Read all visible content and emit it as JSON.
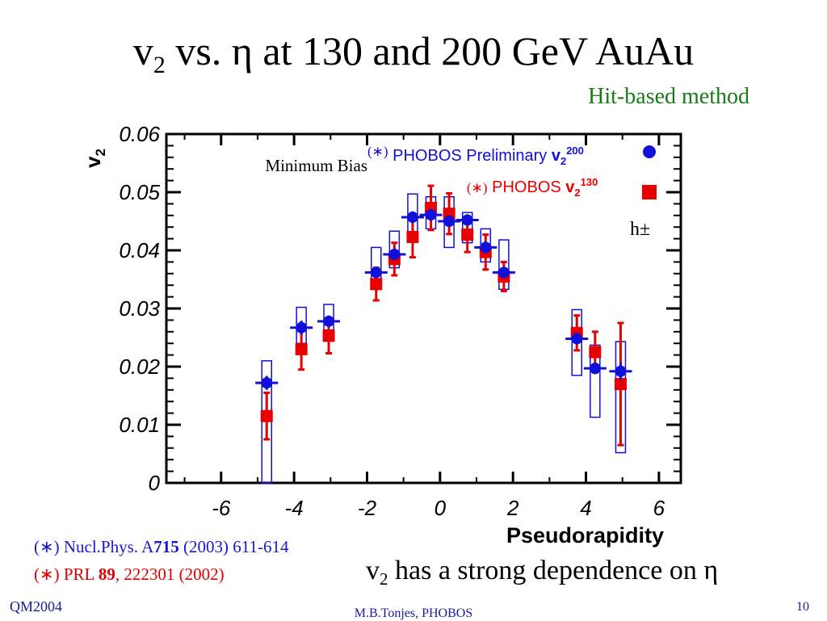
{
  "slide": {
    "title_pre": "v",
    "title_sub": "2",
    "title_post": " vs. η at 130 and 200 GeV AuAu",
    "method": "Hit-based method",
    "ref1_pre": "(∗) Nucl.Phys. A",
    "ref1_bold": "715",
    "ref1_post": " (2003) 611-614",
    "ref2_pre": "(∗) PRL ",
    "ref2_bold": "89",
    "ref2_post": ", 222301 (2002)",
    "conclusion_pre": "v",
    "conclusion_sub": "2",
    "conclusion_post": " has a strong dependence on η",
    "footer_left": "QM2004",
    "footer_center": "M.B.Tonjes, PHOBOS",
    "page_number": "10"
  },
  "chart_data": {
    "type": "scatter",
    "xlabel": "Pseudorapidity",
    "ylabel_main": "v",
    "ylabel_sub": "2",
    "xlim": [
      -7.5,
      6.6
    ],
    "ylim": [
      0,
      0.06
    ],
    "x_ticks": [
      -6,
      -4,
      -2,
      0,
      2,
      4,
      6
    ],
    "x_tick_labels": [
      "-6",
      "-4",
      "-2",
      "0",
      "2",
      "4",
      "6"
    ],
    "y_ticks": [
      0,
      0.01,
      0.02,
      0.03,
      0.04,
      0.05,
      0.06
    ],
    "y_tick_labels": [
      "0",
      "0.01",
      "0.02",
      "0.03",
      "0.04",
      "0.05",
      "0.06"
    ],
    "colors": {
      "blue": "#1010d8",
      "red": "#e80000"
    },
    "annotations": {
      "minimum_bias": "Minimum Bias",
      "particle": "h±"
    },
    "legend": [
      {
        "marker": "(∗)",
        "text": "PHOBOS Preliminary ",
        "symbol": "v",
        "sub": "2",
        "sup": "200",
        "color": "#1010d8"
      },
      {
        "marker": "(∗)",
        "text": "PHOBOS ",
        "symbol": "v",
        "sub": "2",
        "sup": "130",
        "color": "#e80000"
      }
    ],
    "series": [
      {
        "name": "PHOBOS Preliminary v2 200",
        "color": "#1010d8",
        "points": [
          {
            "x": -4.75,
            "y": 0.0172,
            "err": 0.0012,
            "sys_low": 0.0,
            "sys_high": 0.021
          },
          {
            "x": -3.8,
            "y": 0.0267,
            "err": 0.0012,
            "sys_low": 0.024,
            "sys_high": 0.0302
          },
          {
            "x": -3.05,
            "y": 0.0278,
            "err": 0.001,
            "sys_low": 0.0263,
            "sys_high": 0.0307
          },
          {
            "x": -1.75,
            "y": 0.0362,
            "err": 0.001,
            "sys_low": 0.0335,
            "sys_high": 0.0405
          },
          {
            "x": -1.25,
            "y": 0.0393,
            "err": 0.001,
            "sys_low": 0.037,
            "sys_high": 0.0433
          },
          {
            "x": -0.75,
            "y": 0.0457,
            "err": 0.001,
            "sys_low": 0.0432,
            "sys_high": 0.0497
          },
          {
            "x": -0.25,
            "y": 0.0461,
            "err": 0.001,
            "sys_low": 0.0437,
            "sys_high": 0.0492
          },
          {
            "x": 0.25,
            "y": 0.045,
            "err": 0.001,
            "sys_low": 0.0405,
            "sys_high": 0.0492
          },
          {
            "x": 0.75,
            "y": 0.0452,
            "err": 0.001,
            "sys_low": 0.0413,
            "sys_high": 0.0465
          },
          {
            "x": 1.25,
            "y": 0.0405,
            "err": 0.001,
            "sys_low": 0.038,
            "sys_high": 0.0437
          },
          {
            "x": 1.75,
            "y": 0.0362,
            "err": 0.001,
            "sys_low": 0.0333,
            "sys_high": 0.0418
          },
          {
            "x": 3.75,
            "y": 0.0248,
            "err": 0.001,
            "sys_low": 0.0185,
            "sys_high": 0.0298
          },
          {
            "x": 4.25,
            "y": 0.0197,
            "err": 0.001,
            "sys_low": 0.0113,
            "sys_high": 0.0237
          },
          {
            "x": 4.95,
            "y": 0.0192,
            "err": 0.0015,
            "sys_low": 0.0052,
            "sys_high": 0.0243
          }
        ]
      },
      {
        "name": "PHOBOS v2 130",
        "color": "#e80000",
        "points": [
          {
            "x": -4.75,
            "y": 0.0115,
            "err": 0.004
          },
          {
            "x": -3.8,
            "y": 0.023,
            "err": 0.0035
          },
          {
            "x": -3.05,
            "y": 0.0253,
            "err": 0.003
          },
          {
            "x": -1.75,
            "y": 0.0342,
            "err": 0.0028
          },
          {
            "x": -1.25,
            "y": 0.0385,
            "err": 0.0028
          },
          {
            "x": -0.75,
            "y": 0.0423,
            "err": 0.0035
          },
          {
            "x": -0.25,
            "y": 0.0473,
            "err": 0.0038
          },
          {
            "x": 0.25,
            "y": 0.0463,
            "err": 0.0035
          },
          {
            "x": 0.75,
            "y": 0.0427,
            "err": 0.003
          },
          {
            "x": 1.25,
            "y": 0.0397,
            "err": 0.003
          },
          {
            "x": 1.75,
            "y": 0.0355,
            "err": 0.0025
          },
          {
            "x": 3.75,
            "y": 0.0258,
            "err": 0.003
          },
          {
            "x": 4.25,
            "y": 0.0225,
            "err": 0.0035
          },
          {
            "x": 4.95,
            "y": 0.017,
            "err": 0.0105
          }
        ]
      }
    ]
  }
}
